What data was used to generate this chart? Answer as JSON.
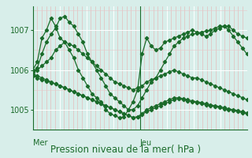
{
  "title": "Pression niveau de la mer( hPa )",
  "xlabel_mer": "Mer",
  "xlabel_jeu": "Jeu",
  "bg_color": "#d8eeea",
  "line_color": "#1a6b2a",
  "yticks": [
    1005,
    1006,
    1007
  ],
  "ylim": [
    1004.5,
    1007.6
  ],
  "xlim": [
    0,
    48
  ],
  "mer_x": 0,
  "jeu_x": 24,
  "vline_x": 24,
  "series": [
    [
      1006.0,
      1006.2,
      1006.8,
      1007.0,
      1007.3,
      1007.1,
      1006.8,
      1006.7,
      1006.5,
      1006.3,
      1006.0,
      1005.8,
      1005.6,
      1005.4,
      1005.3,
      1005.2,
      1005.0,
      1004.9,
      1004.85,
      1004.8,
      1004.82,
      1005.0,
      1005.2,
      1005.5,
      1006.4,
      1006.8,
      1006.6,
      1006.5,
      1006.55,
      1006.7,
      1006.75,
      1006.8,
      1006.85,
      1006.9,
      1006.95,
      1007.0,
      1006.95,
      1006.9,
      1006.85,
      1006.9,
      1007.0,
      1007.05,
      1007.1,
      1007.1,
      1007.0,
      1006.9,
      1006.85,
      1006.8
    ],
    [
      1005.95,
      1006.05,
      1006.4,
      1006.7,
      1006.9,
      1007.05,
      1007.3,
      1007.35,
      1007.2,
      1007.1,
      1006.9,
      1006.7,
      1006.4,
      1006.2,
      1006.0,
      1005.8,
      1005.6,
      1005.4,
      1005.3,
      1005.2,
      1005.1,
      1005.0,
      1005.0,
      1005.1,
      1005.3,
      1005.5,
      1005.7,
      1005.8,
      1006.0,
      1006.2,
      1006.4,
      1006.6,
      1006.7,
      1006.8,
      1006.85,
      1006.9,
      1006.92,
      1006.95,
      1006.98,
      1007.0,
      1007.05,
      1007.1,
      1007.1,
      1007.0,
      1006.85,
      1006.7,
      1006.55,
      1006.4
    ],
    [
      1006.0,
      1006.0,
      1006.1,
      1006.2,
      1006.3,
      1006.5,
      1006.6,
      1006.7,
      1006.65,
      1006.6,
      1006.5,
      1006.4,
      1006.3,
      1006.2,
      1006.1,
      1006.0,
      1005.9,
      1005.8,
      1005.7,
      1005.65,
      1005.6,
      1005.55,
      1005.5,
      1005.55,
      1005.6,
      1005.7,
      1005.75,
      1005.8,
      1005.85,
      1005.9,
      1005.95,
      1006.0,
      1005.95,
      1005.9,
      1005.85,
      1005.8,
      1005.8,
      1005.75,
      1005.7,
      1005.65,
      1005.6,
      1005.55,
      1005.5,
      1005.45,
      1005.4,
      1005.35,
      1005.3,
      1005.25
    ],
    [
      1005.9,
      1005.85,
      1005.8,
      1005.75,
      1005.7,
      1005.65,
      1005.6,
      1005.55,
      1005.5,
      1005.45,
      1005.4,
      1005.35,
      1005.3,
      1005.25,
      1005.2,
      1005.15,
      1005.1,
      1005.05,
      1005.0,
      1004.95,
      1004.9,
      1004.85,
      1004.8,
      1004.82,
      1004.9,
      1005.0,
      1005.05,
      1005.1,
      1005.15,
      1005.2,
      1005.25,
      1005.3,
      1005.3,
      1005.28,
      1005.25,
      1005.22,
      1005.2,
      1005.18,
      1005.15,
      1005.12,
      1005.1,
      1005.08,
      1005.05,
      1005.02,
      1005.0,
      1004.98,
      1004.95,
      1004.92
    ],
    [
      1005.85,
      1005.8,
      1005.75,
      1005.72,
      1005.68,
      1005.65,
      1005.6,
      1005.55,
      1005.5,
      1005.45,
      1005.4,
      1005.35,
      1005.3,
      1005.25,
      1005.2,
      1005.15,
      1005.1,
      1005.05,
      1005.0,
      1004.95,
      1004.9,
      1004.85,
      1004.8,
      1004.82,
      1004.88,
      1004.95,
      1005.0,
      1005.05,
      1005.1,
      1005.15,
      1005.2,
      1005.25,
      1005.28,
      1005.25,
      1005.22,
      1005.2,
      1005.18,
      1005.15,
      1005.12,
      1005.1,
      1005.08,
      1005.05,
      1005.02,
      1005.0,
      1004.98,
      1004.95,
      1004.92,
      1004.9
    ]
  ]
}
